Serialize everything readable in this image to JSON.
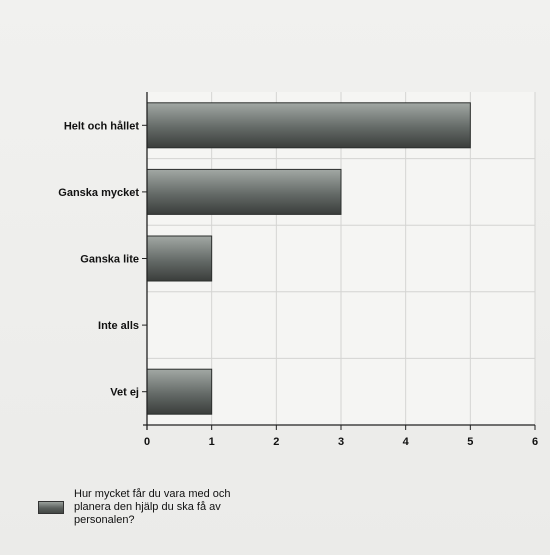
{
  "chart_data": {
    "type": "bar",
    "orientation": "horizontal",
    "categories": [
      "Helt och hållet",
      "Ganska mycket",
      "Ganska lite",
      "Inte alls",
      "Vet ej"
    ],
    "series": [
      {
        "name": "Hur mycket får du vara med och planera den hjälp du ska få av personalen?",
        "values": [
          5,
          3,
          1,
          0,
          1
        ]
      }
    ],
    "title": "",
    "xlabel": "",
    "ylabel": "",
    "xlim": [
      0,
      6
    ],
    "x_ticks": [
      0,
      1,
      2,
      3,
      4,
      5,
      6
    ],
    "grid": true,
    "legend_position": "bottom-left",
    "colors": {
      "bar_top": "#a2a8a4",
      "bar_mid": "#646a67",
      "bar_bottom": "#3a3d3b",
      "grid": "#d4d4d2",
      "axis": "#222222"
    }
  }
}
